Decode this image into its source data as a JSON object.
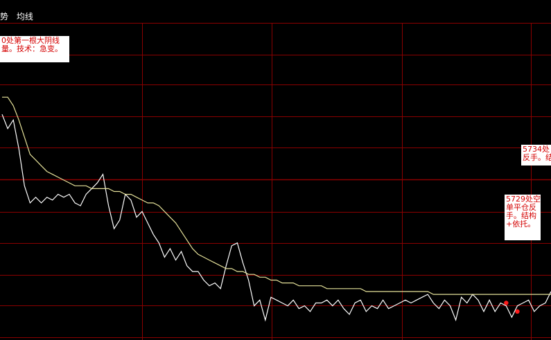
{
  "legend": {
    "item1": "势",
    "item2": "均线"
  },
  "colors": {
    "background": "#000000",
    "grid": "#8b0000",
    "price_line": "#ffffff",
    "avg_line": "#e6e29a",
    "marker": "#ff1a1a",
    "annotation_text": "#d40000",
    "annotation_bg": "#ffffff"
  },
  "annotations": [
    {
      "text": "0处第一根大阴线\n量。技术：急变。"
    },
    {
      "text": "5734处\n反手。结"
    },
    {
      "text": "5729处空\n单平仓反\n手。结构\n+依托。"
    }
  ],
  "chart_data": {
    "type": "line",
    "grid": true,
    "series": [
      {
        "values": [
          92,
          97,
          94,
          104,
          117,
          123,
          121,
          123,
          121,
          122,
          120,
          121,
          120,
          123,
          124,
          120,
          118,
          116,
          113,
          124,
          132,
          129,
          120,
          122,
          128,
          126,
          130,
          134,
          137,
          142,
          139,
          143,
          140,
          145,
          147,
          147,
          150,
          152,
          151,
          153,
          145,
          138,
          137,
          144,
          150,
          159,
          157,
          164,
          156,
          157,
          158,
          159,
          157,
          160,
          159,
          161,
          158,
          158,
          157,
          159,
          157,
          160,
          162,
          158,
          157,
          161,
          159,
          160,
          157,
          160,
          159,
          158,
          157,
          158,
          157,
          156,
          155,
          158,
          160,
          157,
          159,
          164,
          156,
          158,
          155,
          157,
          161,
          157,
          161,
          158,
          159,
          163,
          159,
          158,
          157,
          161,
          159,
          158,
          154
        ]
      },
      {
        "values": [
          86,
          86,
          89,
          94,
          100,
          106,
          108,
          110,
          112,
          113,
          114,
          115,
          116,
          117,
          117,
          117,
          118,
          118,
          118,
          118,
          119,
          119,
          120,
          120,
          121,
          122,
          123,
          123,
          124,
          126,
          128,
          130,
          133,
          136,
          139,
          141,
          142,
          143,
          144,
          145,
          146,
          146,
          147,
          147,
          148,
          148,
          149,
          149,
          150,
          150,
          151,
          151,
          151,
          152,
          152,
          152,
          152,
          152,
          153,
          153,
          153,
          153,
          153,
          153,
          153,
          154,
          154,
          154,
          154,
          154,
          154,
          154,
          154,
          154,
          154,
          154,
          154,
          155,
          155,
          155,
          155,
          155,
          155,
          155,
          155,
          155,
          155,
          155,
          155,
          155,
          155,
          155,
          155,
          155,
          155,
          155,
          155,
          155,
          155
        ]
      }
    ],
    "markers": [
      {
        "index": 90,
        "value": 158
      },
      {
        "index": 92,
        "value": 161
      }
    ]
  }
}
